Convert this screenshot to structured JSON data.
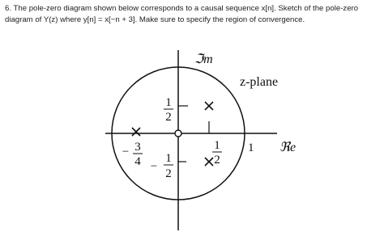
{
  "question": {
    "lines": [
      "6. The pole-zero diagram shown below corresponds to a causal sequence x[n]. Sketch of the pole-zero",
      "diagram of Y(z) where y[n] = x[−n + 3]. Make sure to specify the region of convergence."
    ]
  },
  "diagram": {
    "imag_axis_label": "ℑm",
    "plane_label": "z-plane",
    "real_axis_label": "ℜe",
    "unit_label": "1",
    "fractions": [
      {
        "num": "1",
        "den": "2"
      },
      {
        "sign": "−",
        "num": "3",
        "den": "4"
      },
      {
        "sign": "−",
        "num": "1",
        "den": "2"
      },
      {
        "num": "1",
        "den": "2"
      }
    ]
  }
}
